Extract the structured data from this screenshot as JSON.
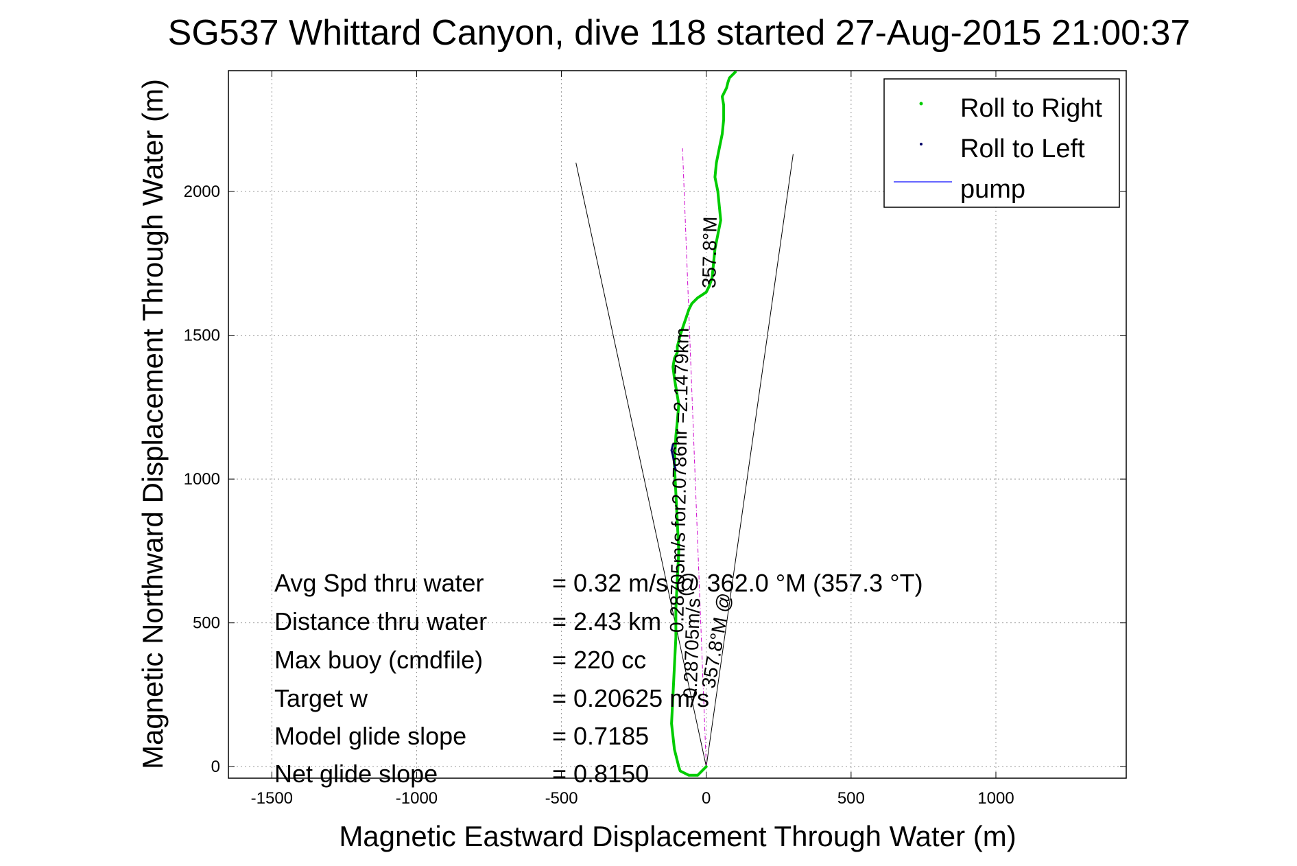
{
  "chart_data": {
    "type": "line",
    "title": "SG537 Whittard Canyon, dive 118 started 27-Aug-2015 21:00:37",
    "xlabel": "Magnetic Eastward Displacement Through Water (m)",
    "ylabel": "Magnetic Northward Displacement Through Water (m)",
    "xlim": [
      -1650,
      1450
    ],
    "ylim": [
      -40,
      2420
    ],
    "xticks": [
      -1500,
      -1000,
      -500,
      0,
      500,
      1000
    ],
    "yticks": [
      0,
      500,
      1000,
      1500,
      2000
    ],
    "grid": true,
    "legend_position": "top-right",
    "colors": {
      "roll_right": "#00cc00",
      "roll_left": "#000066",
      "pump": "#3333ff",
      "heading_line": "#cc00cc",
      "cone": "#000000"
    },
    "series": [
      {
        "name": "Roll to Right",
        "x": [
          0,
          -30,
          -60,
          -90,
          -95,
          -110,
          -120,
          -115,
          -110,
          -105,
          -105,
          -100,
          -95,
          -100,
          -105,
          -110,
          -105,
          -100,
          -95,
          -100,
          -105,
          -110,
          -115,
          -110,
          -100,
          -100,
          -95,
          -90,
          -80,
          -70,
          -60,
          -50,
          -40,
          -30,
          -15,
          0,
          10,
          20,
          30,
          40,
          50,
          45,
          40,
          30,
          35,
          45,
          55,
          60,
          60,
          55,
          70,
          75,
          80,
          90,
          100
        ],
        "y": [
          0,
          -30,
          -30,
          -15,
          0,
          60,
          150,
          250,
          350,
          450,
          550,
          650,
          750,
          850,
          950,
          1050,
          1150,
          1200,
          1260,
          1290,
          1320,
          1350,
          1390,
          1420,
          1440,
          1460,
          1480,
          1500,
          1530,
          1560,
          1590,
          1610,
          1620,
          1630,
          1640,
          1650,
          1670,
          1700,
          1800,
          1850,
          1900,
          1950,
          2000,
          2050,
          2100,
          2150,
          2200,
          2250,
          2300,
          2330,
          2360,
          2380,
          2395,
          2405,
          2415
        ]
      },
      {
        "name": "Roll to Left",
        "x": [
          -105,
          -110,
          -115,
          -120,
          -115
        ],
        "y": [
          1030,
          1050,
          1080,
          1100,
          1120
        ]
      },
      {
        "name": "pump",
        "x": [],
        "y": []
      }
    ],
    "heading_line": {
      "x": [
        0,
        -82
      ],
      "y": [
        0,
        2150
      ]
    },
    "cone_lines": [
      {
        "x": [
          0,
          -450
        ],
        "y": [
          0,
          2100
        ]
      },
      {
        "x": [
          0,
          300
        ],
        "y": [
          0,
          2130
        ]
      }
    ],
    "annotations": [
      "0.28705m/s for2.0786hr =2.1479km",
      "357.8°M",
      "357.8°M @",
      "0.28705m/s"
    ],
    "stats": [
      {
        "label": "Avg Spd thru water",
        "value": "=  0.32 m/s @  362.0 °M (357.3 °T)"
      },
      {
        "label": "Distance thru water",
        "value": "=  2.43 km"
      },
      {
        "label": "Max buoy (cmdfile)",
        "value": "= 220 cc"
      },
      {
        "label": "Target w",
        "value": "= 0.20625 m/s"
      },
      {
        "label": "Model glide slope",
        "value": "= 0.7185"
      },
      {
        "label": "Net glide slope",
        "value": "= 0.8150"
      }
    ]
  }
}
